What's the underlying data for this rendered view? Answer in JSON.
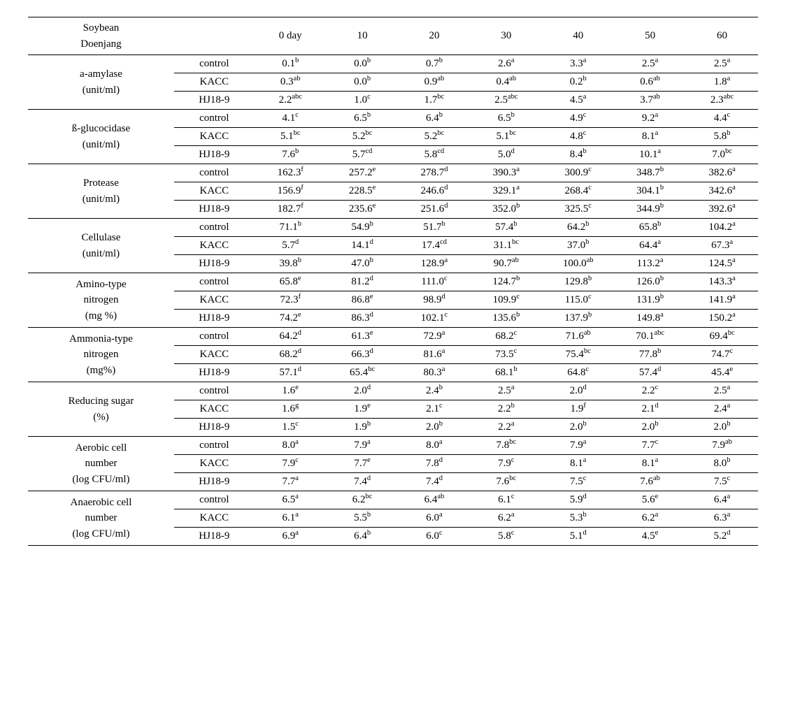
{
  "header": {
    "name_l1": "Soybean",
    "name_l2": "Doenjang",
    "days": [
      "0 day",
      "10",
      "20",
      "30",
      "40",
      "50",
      "60"
    ]
  },
  "treatments": [
    "control",
    "KACC",
    "HJ18-9"
  ],
  "blocks": [
    {
      "label_lines": [
        "a-amylase",
        "(unit/ml)"
      ],
      "rows": [
        [
          {
            "v": "0.1",
            "s": "b"
          },
          {
            "v": "0.0",
            "s": "b"
          },
          {
            "v": "0.7",
            "s": "b"
          },
          {
            "v": "2.6",
            "s": "a"
          },
          {
            "v": "3.3",
            "s": "a"
          },
          {
            "v": "2.5",
            "s": "a"
          },
          {
            "v": "2.5",
            "s": "a"
          }
        ],
        [
          {
            "v": "0.3",
            "s": "ab"
          },
          {
            "v": "0.0",
            "s": "b"
          },
          {
            "v": "0.9",
            "s": "ab"
          },
          {
            "v": "0.4",
            "s": "ab"
          },
          {
            "v": "0.2",
            "s": "b"
          },
          {
            "v": "0.6",
            "s": "ab"
          },
          {
            "v": "1.8",
            "s": "a"
          }
        ],
        [
          {
            "v": "2.2",
            "s": "abc"
          },
          {
            "v": "1.0",
            "s": "c"
          },
          {
            "v": "1.7",
            "s": "bc"
          },
          {
            "v": "2.5",
            "s": "abc"
          },
          {
            "v": "4.5",
            "s": "a"
          },
          {
            "v": "3.7",
            "s": "ab"
          },
          {
            "v": "2.3",
            "s": "abc"
          }
        ]
      ]
    },
    {
      "label_lines": [
        "ß-glucocidase",
        "(unit/ml)"
      ],
      "rows": [
        [
          {
            "v": "4.1",
            "s": "c"
          },
          {
            "v": "6.5",
            "s": "b"
          },
          {
            "v": "6.4",
            "s": "b"
          },
          {
            "v": "6.5",
            "s": "b"
          },
          {
            "v": "4.9",
            "s": "c"
          },
          {
            "v": "9.2",
            "s": "a"
          },
          {
            "v": "4.4",
            "s": "c"
          }
        ],
        [
          {
            "v": "5.1",
            "s": "bc"
          },
          {
            "v": "5.2",
            "s": "bc"
          },
          {
            "v": "5.2",
            "s": "bc"
          },
          {
            "v": "5.1",
            "s": "bc"
          },
          {
            "v": "4.8",
            "s": "c"
          },
          {
            "v": "8.1",
            "s": "a"
          },
          {
            "v": "5.8",
            "s": "b"
          }
        ],
        [
          {
            "v": "7.6",
            "s": "b"
          },
          {
            "v": "5.7",
            "s": "cd"
          },
          {
            "v": "5.8",
            "s": "cd"
          },
          {
            "v": "5.0",
            "s": "d"
          },
          {
            "v": "8.4",
            "s": "b"
          },
          {
            "v": "10.1",
            "s": "a"
          },
          {
            "v": "7.0",
            "s": "bc"
          }
        ]
      ]
    },
    {
      "label_lines": [
        "Protease",
        "(unit/ml)"
      ],
      "rows": [
        [
          {
            "v": "162.3",
            "s": "f"
          },
          {
            "v": "257.2",
            "s": "e"
          },
          {
            "v": "278.7",
            "s": "d"
          },
          {
            "v": "390.3",
            "s": "a"
          },
          {
            "v": "300.9",
            "s": "c"
          },
          {
            "v": "348.7",
            "s": "b"
          },
          {
            "v": "382.6",
            "s": "a"
          }
        ],
        [
          {
            "v": "156.9",
            "s": "f"
          },
          {
            "v": "228.5",
            "s": "e"
          },
          {
            "v": "246.6",
            "s": "d"
          },
          {
            "v": "329.1",
            "s": "a"
          },
          {
            "v": "268.4",
            "s": "c"
          },
          {
            "v": "304.1",
            "s": "b"
          },
          {
            "v": "342.6",
            "s": "a"
          }
        ],
        [
          {
            "v": "182.7",
            "s": "f"
          },
          {
            "v": "235.6",
            "s": "e"
          },
          {
            "v": "251.6",
            "s": "d"
          },
          {
            "v": "352.0",
            "s": "b"
          },
          {
            "v": "325.5",
            "s": "c"
          },
          {
            "v": "344.9",
            "s": "b"
          },
          {
            "v": "392.6",
            "s": "a"
          }
        ]
      ]
    },
    {
      "label_lines": [
        "Cellulase",
        "(unit/ml)"
      ],
      "rows": [
        [
          {
            "v": "71.1",
            "s": "b"
          },
          {
            "v": "54.9",
            "s": "b"
          },
          {
            "v": "51.7",
            "s": "b"
          },
          {
            "v": "57.4",
            "s": "b"
          },
          {
            "v": "64.2",
            "s": "b"
          },
          {
            "v": "65.8",
            "s": "b"
          },
          {
            "v": "104.2",
            "s": "a"
          }
        ],
        [
          {
            "v": "5.7",
            "s": "d"
          },
          {
            "v": "14.1",
            "s": "d"
          },
          {
            "v": "17.4",
            "s": "cd"
          },
          {
            "v": "31.1",
            "s": "bc"
          },
          {
            "v": "37.0",
            "s": "b"
          },
          {
            "v": "64.4",
            "s": "a"
          },
          {
            "v": "67.3",
            "s": "a"
          }
        ],
        [
          {
            "v": "39.8",
            "s": "b"
          },
          {
            "v": "47.0",
            "s": "b"
          },
          {
            "v": "128.9",
            "s": "a"
          },
          {
            "v": "90.7",
            "s": "ab"
          },
          {
            "v": "100.0",
            "s": "ab"
          },
          {
            "v": "113.2",
            "s": "a"
          },
          {
            "v": "124.5",
            "s": "a"
          }
        ]
      ]
    },
    {
      "label_lines": [
        "Amino-type",
        "nitrogen",
        "(mg  %)"
      ],
      "rows": [
        [
          {
            "v": "65.8",
            "s": "e"
          },
          {
            "v": "81.2",
            "s": "d"
          },
          {
            "v": "111.0",
            "s": "c"
          },
          {
            "v": "124.7",
            "s": "b"
          },
          {
            "v": "129.8",
            "s": "b"
          },
          {
            "v": "126.0",
            "s": "b"
          },
          {
            "v": "143.3",
            "s": "a"
          }
        ],
        [
          {
            "v": "72.3",
            "s": "f"
          },
          {
            "v": "86.8",
            "s": "e"
          },
          {
            "v": "98.9",
            "s": "d"
          },
          {
            "v": "109.9",
            "s": "c"
          },
          {
            "v": "115.0",
            "s": "c"
          },
          {
            "v": "131.9",
            "s": "b"
          },
          {
            "v": "141.9",
            "s": "a"
          }
        ],
        [
          {
            "v": "74.2",
            "s": "e"
          },
          {
            "v": "86.3",
            "s": "d"
          },
          {
            "v": "102.1",
            "s": "c"
          },
          {
            "v": "135.6",
            "s": "b"
          },
          {
            "v": "137.9",
            "s": "b"
          },
          {
            "v": "149.8",
            "s": "a"
          },
          {
            "v": "150.2",
            "s": "a"
          }
        ]
      ]
    },
    {
      "label_lines": [
        "Ammonia-type",
        "nitrogen",
        "(mg%)"
      ],
      "rows": [
        [
          {
            "v": "64.2",
            "s": "d"
          },
          {
            "v": "61.3",
            "s": "e"
          },
          {
            "v": "72.9",
            "s": "a"
          },
          {
            "v": "68.2",
            "s": "c"
          },
          {
            "v": "71.6",
            "s": "ab"
          },
          {
            "v": "70.1",
            "s": "abc"
          },
          {
            "v": "69.4",
            "s": "bc"
          }
        ],
        [
          {
            "v": "68.2",
            "s": "d"
          },
          {
            "v": "66.3",
            "s": "d"
          },
          {
            "v": "81.6",
            "s": "a"
          },
          {
            "v": "73.5",
            "s": "c"
          },
          {
            "v": "75.4",
            "s": "bc"
          },
          {
            "v": "77.8",
            "s": "b"
          },
          {
            "v": "74.7",
            "s": "c"
          }
        ],
        [
          {
            "v": "57.1",
            "s": "d"
          },
          {
            "v": "65.4",
            "s": "bc"
          },
          {
            "v": "80.3",
            "s": "a"
          },
          {
            "v": "68.1",
            "s": "b"
          },
          {
            "v": "64.8",
            "s": "c"
          },
          {
            "v": "57.4",
            "s": "d"
          },
          {
            "v": "45.4",
            "s": "e"
          }
        ]
      ]
    },
    {
      "label_lines": [
        "Reducing   sugar",
        "(%)"
      ],
      "rows": [
        [
          {
            "v": "1.6",
            "s": "e"
          },
          {
            "v": "2.0",
            "s": "d"
          },
          {
            "v": "2.4",
            "s": "b"
          },
          {
            "v": "2.5",
            "s": "a"
          },
          {
            "v": "2.0",
            "s": "d"
          },
          {
            "v": "2.2",
            "s": "c"
          },
          {
            "v": "2.5",
            "s": "a"
          }
        ],
        [
          {
            "v": "1.6",
            "s": "g"
          },
          {
            "v": "1.9",
            "s": "e"
          },
          {
            "v": "2.1",
            "s": "c"
          },
          {
            "v": "2.2",
            "s": "b"
          },
          {
            "v": "1.9",
            "s": "f"
          },
          {
            "v": "2.1",
            "s": "d"
          },
          {
            "v": "2.4",
            "s": "a"
          }
        ],
        [
          {
            "v": "1.5",
            "s": "c"
          },
          {
            "v": "1.9",
            "s": "b"
          },
          {
            "v": "2.0",
            "s": "b"
          },
          {
            "v": "2.2",
            "s": "a"
          },
          {
            "v": "2.0",
            "s": "b"
          },
          {
            "v": "2.0",
            "s": "b"
          },
          {
            "v": "2.0",
            "s": "b"
          }
        ]
      ]
    },
    {
      "label_lines": [
        "Aerobic cell",
        "number",
        "(log CFU/ml)"
      ],
      "rows": [
        [
          {
            "v": "8.0",
            "s": "a"
          },
          {
            "v": "7.9",
            "s": "a"
          },
          {
            "v": "8.0",
            "s": "a"
          },
          {
            "v": "7.8",
            "s": "bc"
          },
          {
            "v": "7.9",
            "s": "a"
          },
          {
            "v": "7.7",
            "s": "c"
          },
          {
            "v": "7.9",
            "s": "ab"
          }
        ],
        [
          {
            "v": "7.9",
            "s": "c"
          },
          {
            "v": "7.7",
            "s": "e"
          },
          {
            "v": "7.8",
            "s": "d"
          },
          {
            "v": "7.9",
            "s": "c"
          },
          {
            "v": "8.1",
            "s": "a"
          },
          {
            "v": "8.1",
            "s": "a"
          },
          {
            "v": "8.0",
            "s": "b"
          }
        ],
        [
          {
            "v": "7.7",
            "s": "a"
          },
          {
            "v": "7.4",
            "s": "d"
          },
          {
            "v": "7.4",
            "s": "d"
          },
          {
            "v": "7.6",
            "s": "bc"
          },
          {
            "v": "7.5",
            "s": "c"
          },
          {
            "v": "7.6",
            "s": "ab"
          },
          {
            "v": "7.5",
            "s": "c"
          }
        ]
      ]
    },
    {
      "label_lines": [
        "Anaerobic cell",
        "number",
        "(log CFU/ml)"
      ],
      "rows": [
        [
          {
            "v": "6.5",
            "s": "a"
          },
          {
            "v": "6.2",
            "s": "bc"
          },
          {
            "v": "6.4",
            "s": "ab"
          },
          {
            "v": "6.1",
            "s": "c"
          },
          {
            "v": "5.9",
            "s": "d"
          },
          {
            "v": "5.6",
            "s": "e"
          },
          {
            "v": "6.4",
            "s": "a"
          }
        ],
        [
          {
            "v": "6.1",
            "s": "a"
          },
          {
            "v": "5.5",
            "s": "b"
          },
          {
            "v": "6.0",
            "s": "a"
          },
          {
            "v": "6.2",
            "s": "a"
          },
          {
            "v": "5.3",
            "s": "b"
          },
          {
            "v": "6.2",
            "s": "a"
          },
          {
            "v": "6.3",
            "s": "a"
          }
        ],
        [
          {
            "v": "6.9",
            "s": "a"
          },
          {
            "v": "6.4",
            "s": "b"
          },
          {
            "v": "6.0",
            "s": "c"
          },
          {
            "v": "5.8",
            "s": "c"
          },
          {
            "v": "5.1",
            "s": "d"
          },
          {
            "v": "4.5",
            "s": "e"
          },
          {
            "v": "5.2",
            "s": "d"
          }
        ]
      ]
    }
  ]
}
